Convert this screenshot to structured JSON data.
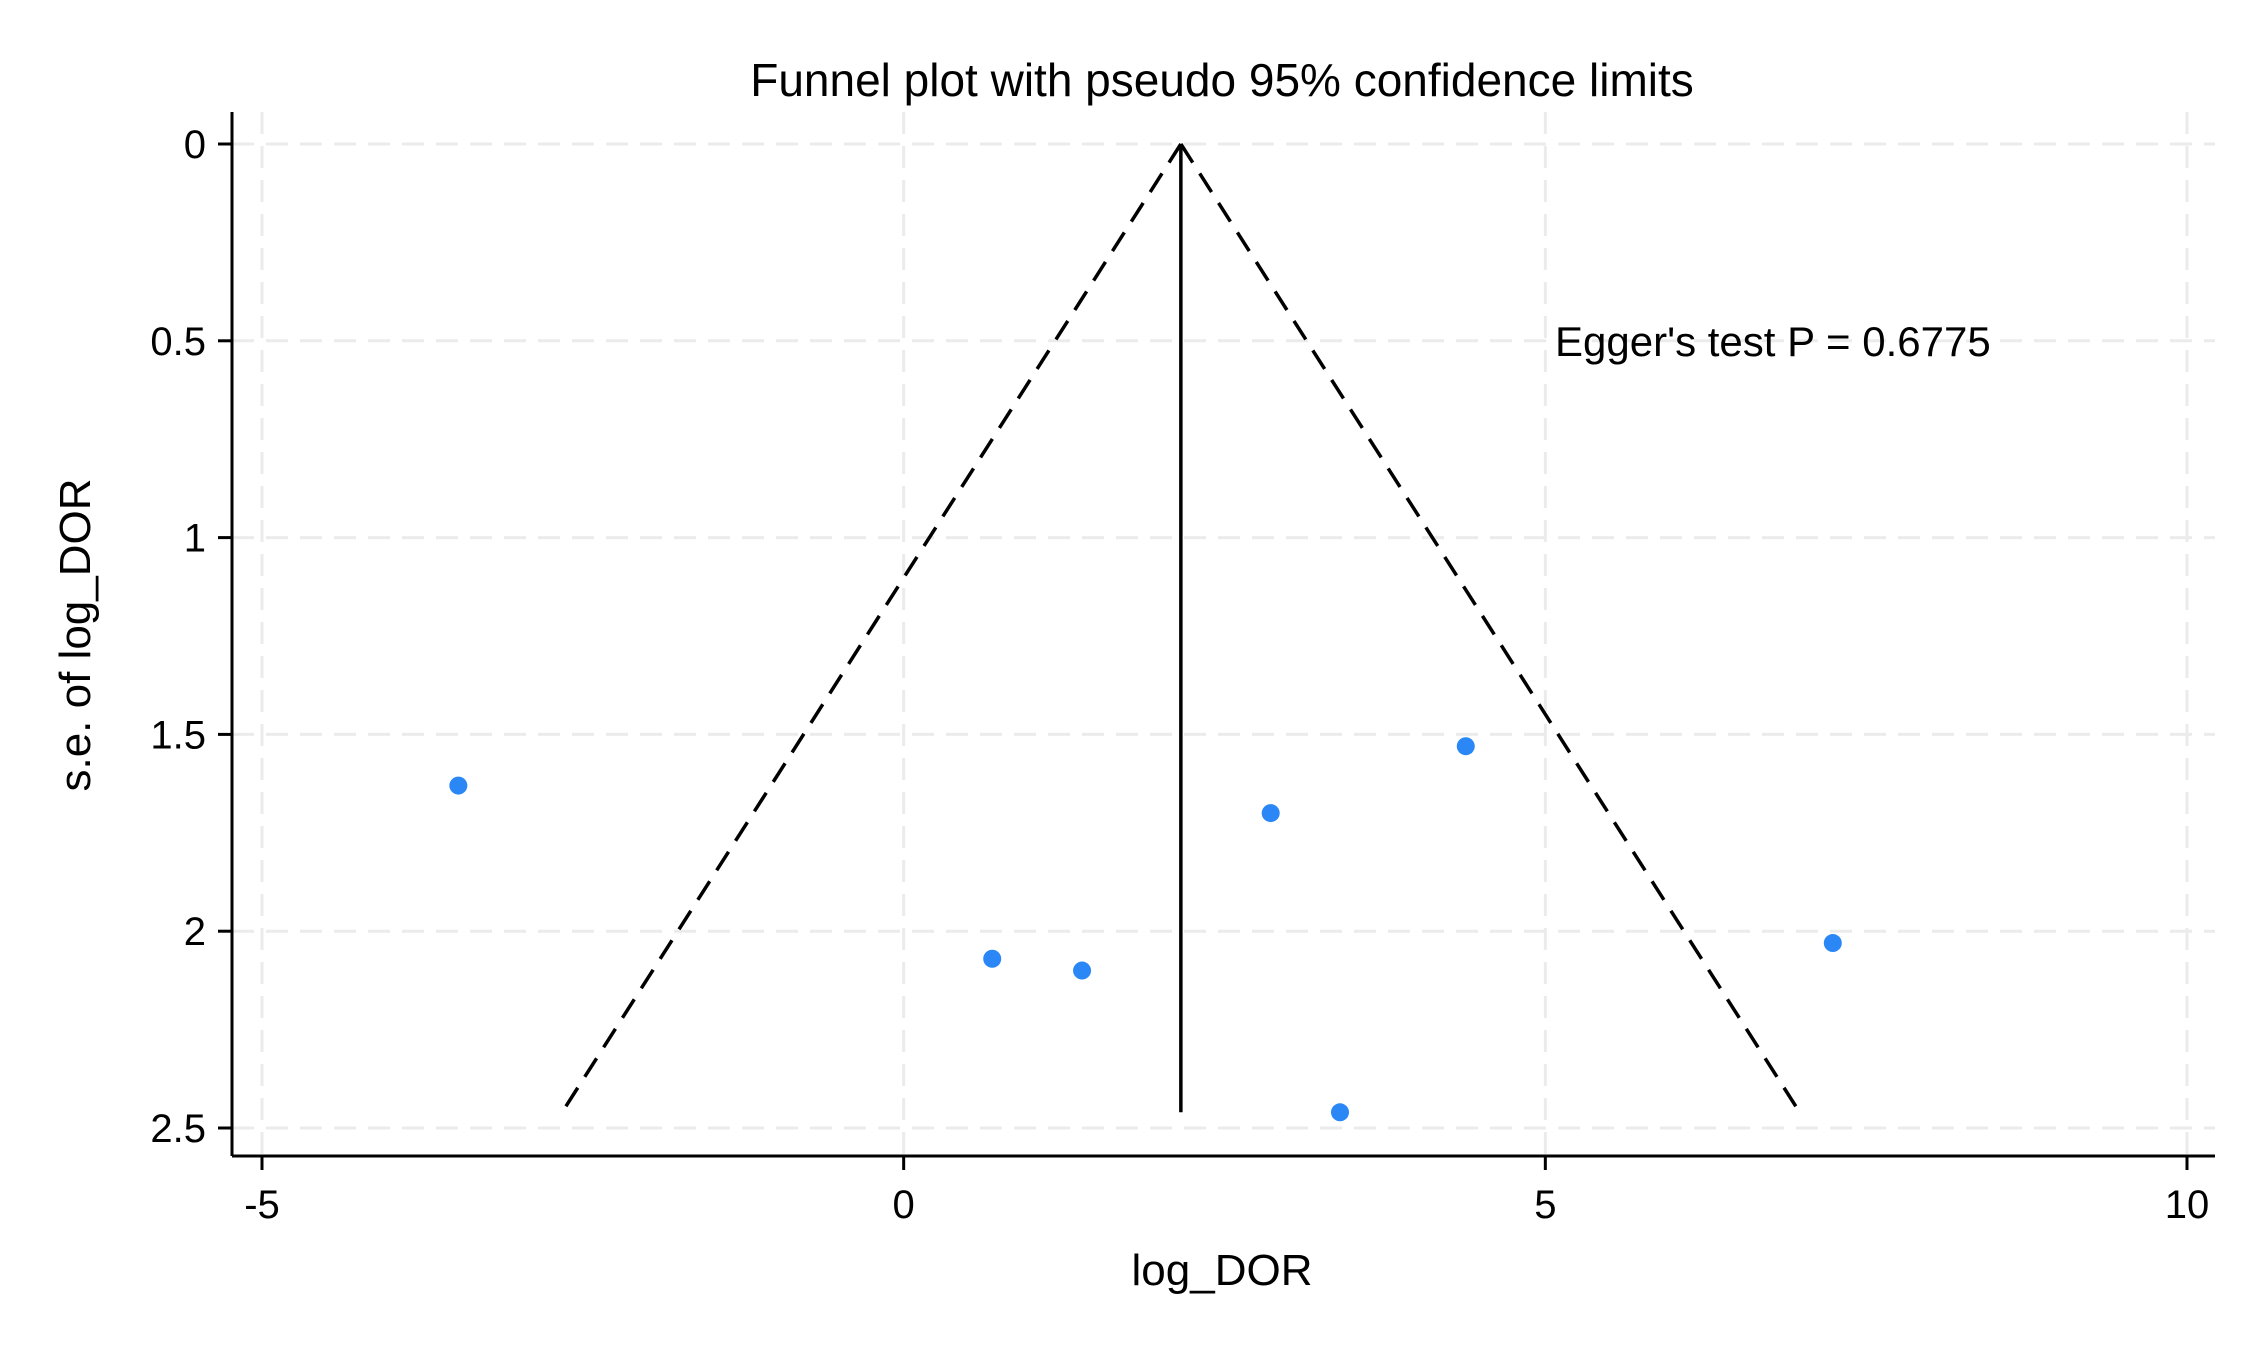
{
  "chart_data": {
    "type": "scatter",
    "title": "Funnel plot with pseudo 95% confidence limits",
    "xlabel": "log_DOR",
    "ylabel": "s.e. of log_DOR",
    "xlim": [
      -5.2,
      10.2
    ],
    "ylim": [
      0,
      2.57
    ],
    "y_reversed": true,
    "xticks": [
      -5,
      0,
      5,
      10
    ],
    "xtick_labels": [
      "-5",
      "0",
      "5",
      "10"
    ],
    "yticks": [
      0,
      0.5,
      1,
      1.5,
      2,
      2.5
    ],
    "ytick_labels": [
      "0",
      "0.5",
      "1",
      "1.5",
      "2",
      "2.5"
    ],
    "grid": true,
    "series": [
      {
        "points": [
          {
            "x": -3.47,
            "y": 1.63
          },
          {
            "x": 0.69,
            "y": 2.07
          },
          {
            "x": 1.39,
            "y": 2.1
          },
          {
            "x": 2.86,
            "y": 1.7
          },
          {
            "x": 4.38,
            "y": 1.53
          },
          {
            "x": 3.4,
            "y": 2.46
          },
          {
            "x": 7.24,
            "y": 2.03
          }
        ],
        "color": "#2b87f5"
      }
    ],
    "pooled_estimate": 2.16,
    "funnel_max_se": 2.46,
    "annotation": "Egger's test P = 0.6775"
  }
}
